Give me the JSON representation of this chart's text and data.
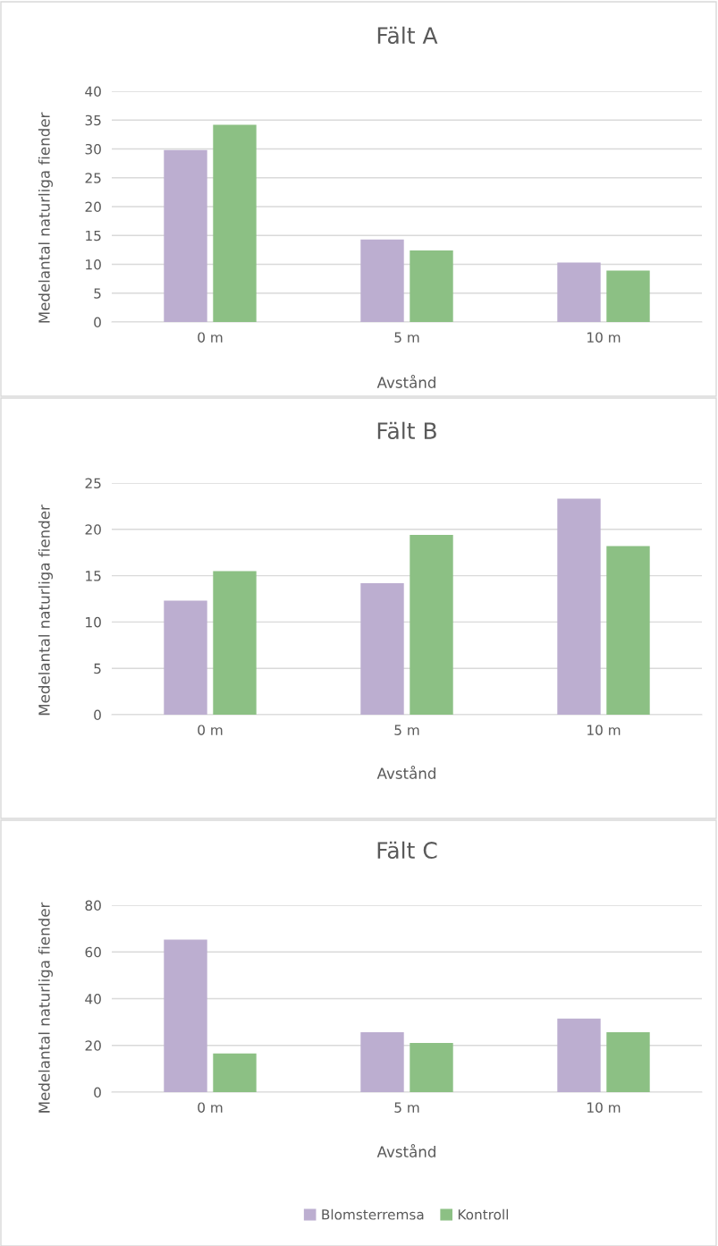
{
  "chart_data": [
    {
      "type": "bar",
      "title": "Fält A",
      "xlabel": "Avstånd",
      "ylabel": "Medelantal naturliga fiender",
      "categories": [
        "0 m",
        "5 m",
        "10 m"
      ],
      "series": [
        {
          "color": "#bcaed0",
          "values": [
            29.8,
            14.3,
            10.3
          ]
        },
        {
          "color": "#8cc084",
          "values": [
            34.2,
            12.4,
            8.9
          ]
        }
      ],
      "ylim": [
        0,
        40
      ],
      "yticks": [
        0,
        5,
        10,
        15,
        20,
        25,
        30,
        35,
        40
      ],
      "grid": "y",
      "legend": false
    },
    {
      "type": "bar",
      "title": "Fält B",
      "xlabel": "Avstånd",
      "ylabel": "Medelantal naturliga fiender",
      "categories": [
        "0 m",
        "5 m",
        "10 m"
      ],
      "series": [
        {
          "color": "#bcaed0",
          "values": [
            12.3,
            14.2,
            23.3
          ]
        },
        {
          "color": "#8cc084",
          "values": [
            15.5,
            19.4,
            18.2
          ]
        }
      ],
      "ylim": [
        0,
        25
      ],
      "yticks": [
        0,
        5,
        10,
        15,
        20,
        25
      ],
      "grid": "y",
      "legend": false
    },
    {
      "type": "bar",
      "title": "Fält C",
      "xlabel": "Avstånd",
      "ylabel": "Medelantal naturliga fiender",
      "categories": [
        "0 m",
        "5 m",
        "10 m"
      ],
      "series": [
        {
          "name": "Blomsterremsa",
          "color": "#bcaed0",
          "values": [
            65.3,
            25.6,
            31.5
          ]
        },
        {
          "name": "Kontroll",
          "color": "#8cc084",
          "values": [
            16.6,
            21.1,
            25.6
          ]
        }
      ],
      "ylim": [
        0,
        80
      ],
      "yticks": [
        0,
        20,
        40,
        60,
        80
      ],
      "grid": "y",
      "legend": "bottom"
    }
  ]
}
